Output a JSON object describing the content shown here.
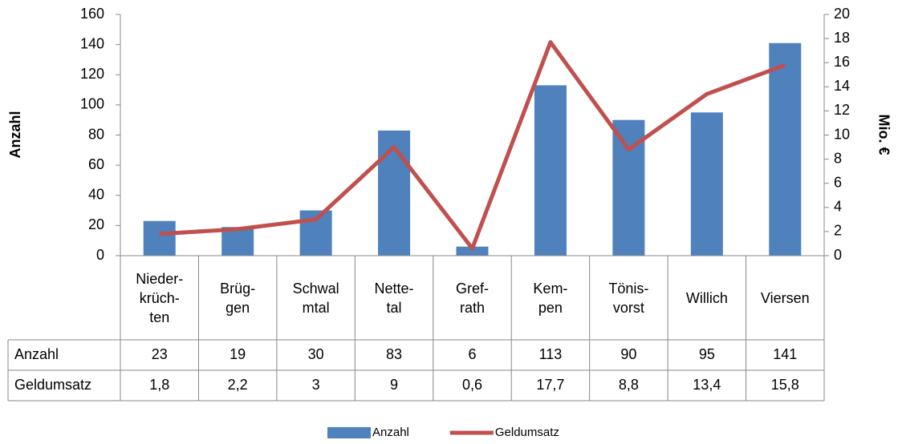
{
  "chart_data": {
    "type": "bar-line",
    "categories": [
      "Nieder-\nkrüch-\nten",
      "Brüg-\ngen",
      "Schwal\nmtal",
      "Nette-\ntal",
      "Gref-\nrath",
      "Kem-\npen",
      "Tönis-\nvorst",
      "Willich",
      "Viersen"
    ],
    "series": [
      {
        "name": "Anzahl",
        "type": "bar",
        "color": "#4f81bd",
        "values": [
          23,
          19,
          30,
          83,
          6,
          113,
          90,
          95,
          141
        ]
      },
      {
        "name": "Geldumsatz",
        "type": "line",
        "axis": "y2",
        "color": "#c0504d",
        "values": [
          1.8,
          2.2,
          3,
          9,
          0.6,
          17.7,
          8.8,
          13.4,
          15.8
        ],
        "value_labels": [
          "1,8",
          "2,2",
          "3",
          "9",
          "0,6",
          "17,7",
          "8,8",
          "13,4",
          "15,8"
        ]
      }
    ],
    "ylabel": "Anzahl",
    "y2label": "Mio. €",
    "ylim": [
      0,
      160
    ],
    "yticks": [
      0,
      20,
      40,
      60,
      80,
      100,
      120,
      140,
      160
    ],
    "y2lim": [
      0,
      20
    ],
    "y2ticks": [
      0,
      2,
      4,
      6,
      8,
      10,
      12,
      14,
      16,
      18,
      20
    ],
    "grid": false,
    "legend": "bottom",
    "data_table": true
  }
}
